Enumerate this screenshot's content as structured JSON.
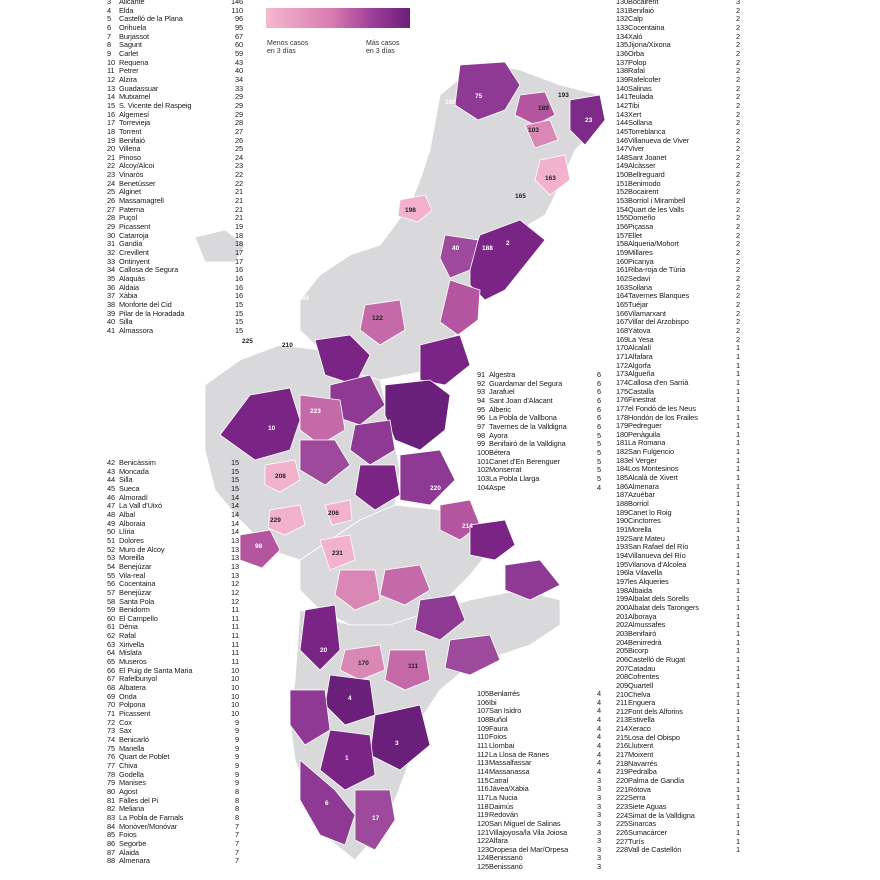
{
  "legend": {
    "min_label_line1": "Menos casos",
    "min_label_line2": "en 3 días",
    "max_label_line1": "Más casos",
    "max_label_line2": "en 3 días",
    "colors": {
      "low": "#f5b8cf",
      "mid": "#d87db0",
      "high": "#6a1f7a",
      "none": "#d9d9db",
      "border": "#ffffff"
    }
  },
  "list_a": [
    {
      "n": "3",
      "name": "Alicante",
      "v": "146"
    },
    {
      "n": "4",
      "name": "Elda",
      "v": "110"
    },
    {
      "n": "5",
      "name": "Castelló de la Plana",
      "v": "96"
    },
    {
      "n": "6",
      "name": "Orihuela",
      "v": "95"
    },
    {
      "n": "7",
      "name": "Burjassot",
      "v": "67"
    },
    {
      "n": "8",
      "name": "Sagunt",
      "v": "60"
    },
    {
      "n": "9",
      "name": "Carlet",
      "v": "59"
    },
    {
      "n": "10",
      "name": "Requena",
      "v": "43"
    },
    {
      "n": "11",
      "name": "Petrer",
      "v": "40"
    },
    {
      "n": "12",
      "name": "Alzira",
      "v": "34"
    },
    {
      "n": "13",
      "name": "Guadassuar",
      "v": "33"
    },
    {
      "n": "14",
      "name": "Mutxamel",
      "v": "29"
    },
    {
      "n": "15",
      "name": "S. Vicente del Raspeig",
      "v": "29"
    },
    {
      "n": "16",
      "name": "Algemesí",
      "v": "29"
    },
    {
      "n": "17",
      "name": "Torrevieja",
      "v": "28"
    },
    {
      "n": "18",
      "name": "Torrent",
      "v": "27"
    },
    {
      "n": "19",
      "name": "Benifaió",
      "v": "26"
    },
    {
      "n": "20",
      "name": "Villena",
      "v": "25"
    },
    {
      "n": "21",
      "name": "Pinoso",
      "v": "24"
    },
    {
      "n": "22",
      "name": "Alcoy/Alcoi",
      "v": "23"
    },
    {
      "n": "23",
      "name": "Vinaròs",
      "v": "22"
    },
    {
      "n": "24",
      "name": "Benetússer",
      "v": "22"
    },
    {
      "n": "25",
      "name": "Alginet",
      "v": "21"
    },
    {
      "n": "26",
      "name": "Massamagrell",
      "v": "21"
    },
    {
      "n": "27",
      "name": "Paterna",
      "v": "21"
    },
    {
      "n": "28",
      "name": "Puçol",
      "v": "21"
    },
    {
      "n": "29",
      "name": "Picassent",
      "v": "19"
    },
    {
      "n": "30",
      "name": "Catarroja",
      "v": "18"
    },
    {
      "n": "31",
      "name": "Gandia",
      "v": "18"
    },
    {
      "n": "32",
      "name": "Crevillent",
      "v": "17"
    },
    {
      "n": "33",
      "name": "Ontinyent",
      "v": "17"
    },
    {
      "n": "34",
      "name": "Callosa de Segura",
      "v": "16"
    },
    {
      "n": "35",
      "name": "Alaquàs",
      "v": "16"
    },
    {
      "n": "36",
      "name": "Aldaia",
      "v": "16"
    },
    {
      "n": "37",
      "name": "Xàbia",
      "v": "16"
    },
    {
      "n": "38",
      "name": "Monforte del Cid",
      "v": "15"
    },
    {
      "n": "39",
      "name": "Pilar de la Horadada",
      "v": "15"
    },
    {
      "n": "40",
      "name": "Silla",
      "v": "15"
    },
    {
      "n": "41",
      "name": "Almassora",
      "v": "15"
    }
  ],
  "list_b": [
    {
      "n": "42",
      "name": "Benicàssim",
      "v": "15"
    },
    {
      "n": "43",
      "name": "Moncada",
      "v": "15"
    },
    {
      "n": "44",
      "name": "Silla",
      "v": "15"
    },
    {
      "n": "45",
      "name": "Sueca",
      "v": "15"
    },
    {
      "n": "46",
      "name": "Almoradí",
      "v": "14"
    },
    {
      "n": "47",
      "name": "La Vall d'Uixó",
      "v": "14"
    },
    {
      "n": "48",
      "name": "Albal",
      "v": "14"
    },
    {
      "n": "49",
      "name": "Alboraia",
      "v": "14"
    },
    {
      "n": "50",
      "name": "Llíria",
      "v": "14"
    },
    {
      "n": "51",
      "name": "Dolores",
      "v": "13"
    },
    {
      "n": "52",
      "name": "Muro de Alcoy",
      "v": "13"
    },
    {
      "n": "53",
      "name": "Moreilla",
      "v": "13"
    },
    {
      "n": "54",
      "name": "Benejúzar",
      "v": "13"
    },
    {
      "n": "55",
      "name": "Vila-real",
      "v": "13"
    },
    {
      "n": "56",
      "name": "Cocentaina",
      "v": "12"
    },
    {
      "n": "57",
      "name": "Benejúzar",
      "v": "12"
    },
    {
      "n": "58",
      "name": "Santa Pola",
      "v": "12"
    },
    {
      "n": "59",
      "name": "Benidorm",
      "v": "11"
    },
    {
      "n": "60",
      "name": "El Campello",
      "v": "11"
    },
    {
      "n": "61",
      "name": "Dénia",
      "v": "11"
    },
    {
      "n": "62",
      "name": "Rafal",
      "v": "11"
    },
    {
      "n": "63",
      "name": "Xirivella",
      "v": "11"
    },
    {
      "n": "64",
      "name": "Mislata",
      "v": "11"
    },
    {
      "n": "65",
      "name": "Museros",
      "v": "11"
    },
    {
      "n": "66",
      "name": "El Puig de Santa Maria",
      "v": "10"
    },
    {
      "n": "67",
      "name": "Rafelbunyol",
      "v": "10"
    },
    {
      "n": "68",
      "name": "Albatera",
      "v": "10"
    },
    {
      "n": "69",
      "name": "Onda",
      "v": "10"
    },
    {
      "n": "70",
      "name": "Polpona",
      "v": "10"
    },
    {
      "n": "71",
      "name": "Picassent",
      "v": "10"
    },
    {
      "n": "72",
      "name": "Cox",
      "v": "9"
    },
    {
      "n": "73",
      "name": "Sax",
      "v": "9"
    },
    {
      "n": "74",
      "name": "Benicarló",
      "v": "9"
    },
    {
      "n": "75",
      "name": "Manella",
      "v": "9"
    },
    {
      "n": "76",
      "name": "Quart de Poblet",
      "v": "9"
    },
    {
      "n": "77",
      "name": "Chiva",
      "v": "9"
    },
    {
      "n": "78",
      "name": "Godella",
      "v": "9"
    },
    {
      "n": "79",
      "name": "Manises",
      "v": "9"
    },
    {
      "n": "80",
      "name": "Agost",
      "v": "8"
    },
    {
      "n": "81",
      "name": "Fàlles del Pi",
      "v": "8"
    },
    {
      "n": "82",
      "name": "Meliana",
      "v": "8"
    },
    {
      "n": "83",
      "name": "La Pobla de Farnals",
      "v": "8"
    },
    {
      "n": "84",
      "name": "Monòver/Monóvar",
      "v": "7"
    },
    {
      "n": "85",
      "name": "Foios",
      "v": "7"
    },
    {
      "n": "86",
      "name": "Segorbe",
      "v": "7"
    },
    {
      "n": "87",
      "name": "Alaida",
      "v": "7"
    },
    {
      "n": "88",
      "name": "Almenara",
      "v": "7"
    }
  ],
  "list_c": [
    {
      "n": "91",
      "name": "Algestra",
      "v": "6"
    },
    {
      "n": "92",
      "name": "Guardamar del Segura",
      "v": "6"
    },
    {
      "n": "93",
      "name": "Jarafuel",
      "v": "6"
    },
    {
      "n": "94",
      "name": "Sant Joan d'Alacant",
      "v": "6"
    },
    {
      "n": "95",
      "name": "Alberic",
      "v": "6"
    },
    {
      "n": "96",
      "name": "La Pobla de Vallbona",
      "v": "6"
    },
    {
      "n": "97",
      "name": "Tavernes de la Valldigna",
      "v": "6"
    },
    {
      "n": "98",
      "name": "Ayora",
      "v": "5"
    },
    {
      "n": "99",
      "name": "Benifairó de la Valldigna",
      "v": "5"
    },
    {
      "n": "100",
      "name": "Bétera",
      "v": "5"
    },
    {
      "n": "101",
      "name": "Canet d'En Berenguer",
      "v": "5"
    },
    {
      "n": "102",
      "name": "Monserrat",
      "v": "5"
    },
    {
      "n": "103",
      "name": "La Pobla Llarga",
      "v": "5"
    },
    {
      "n": "104",
      "name": "Aspe",
      "v": "4"
    }
  ],
  "list_d": [
    {
      "n": "105",
      "name": "Benlarrés",
      "v": "4"
    },
    {
      "n": "106",
      "name": "Ibi",
      "v": "4"
    },
    {
      "n": "107",
      "name": "San Isidro",
      "v": "4"
    },
    {
      "n": "108",
      "name": "Buñol",
      "v": "4"
    },
    {
      "n": "109",
      "name": "Faura",
      "v": "4"
    },
    {
      "n": "110",
      "name": "Foios",
      "v": "4"
    },
    {
      "n": "111",
      "name": "Llombai",
      "v": "4"
    },
    {
      "n": "112",
      "name": "La Llosa de Ranes",
      "v": "4"
    },
    {
      "n": "113",
      "name": "Massalfassar",
      "v": "4"
    },
    {
      "n": "114",
      "name": "Massanassa",
      "v": "4"
    },
    {
      "n": "115",
      "name": "Catral",
      "v": "3"
    },
    {
      "n": "116",
      "name": "Jávea/Xàbia",
      "v": "3"
    },
    {
      "n": "117",
      "name": "La Nucia",
      "v": "3"
    },
    {
      "n": "118",
      "name": "Daimús",
      "v": "3"
    },
    {
      "n": "119",
      "name": "Redován",
      "v": "3"
    },
    {
      "n": "120",
      "name": "San Miguel de Salinas",
      "v": "3"
    },
    {
      "n": "121",
      "name": "Villajoyosa/la Vila Joiosa",
      "v": "3"
    },
    {
      "n": "122",
      "name": "Alfara",
      "v": "3"
    },
    {
      "n": "123",
      "name": "Oropesa del Mar/Orpesa",
      "v": "3"
    },
    {
      "n": "124",
      "name": "Benissanó",
      "v": "3"
    },
    {
      "n": "125",
      "name": "Benissanó",
      "v": "3"
    }
  ],
  "list_e": [
    {
      "n": "130",
      "name": "Bocairent",
      "v": "3"
    },
    {
      "n": "131",
      "name": "Benifaió",
      "v": "2"
    },
    {
      "n": "132",
      "name": "Calp",
      "v": "2"
    },
    {
      "n": "133",
      "name": "Cocentaina",
      "v": "2"
    },
    {
      "n": "134",
      "name": "Xaló",
      "v": "2"
    },
    {
      "n": "135",
      "name": "Jijona/Xixona",
      "v": "2"
    },
    {
      "n": "136",
      "name": "Orba",
      "v": "2"
    },
    {
      "n": "137",
      "name": "Polop",
      "v": "2"
    },
    {
      "n": "138",
      "name": "Rafal",
      "v": "2"
    },
    {
      "n": "139",
      "name": "Rafelcofer",
      "v": "2"
    },
    {
      "n": "140",
      "name": "Salinas",
      "v": "2"
    },
    {
      "n": "141",
      "name": "Teulada",
      "v": "2"
    },
    {
      "n": "142",
      "name": "Tibi",
      "v": "2"
    },
    {
      "n": "143",
      "name": "Xert",
      "v": "2"
    },
    {
      "n": "144",
      "name": "Sollana",
      "v": "2"
    },
    {
      "n": "145",
      "name": "Torreblanca",
      "v": "2"
    },
    {
      "n": "146",
      "name": "Villanueva de Viver",
      "v": "2"
    },
    {
      "n": "147",
      "name": "Viver",
      "v": "2"
    },
    {
      "n": "148",
      "name": "Sant Joanet",
      "v": "2"
    },
    {
      "n": "149",
      "name": "Alcàsser",
      "v": "2"
    },
    {
      "n": "150",
      "name": "Bellreguard",
      "v": "2"
    },
    {
      "n": "151",
      "name": "Benimodo",
      "v": "2"
    },
    {
      "n": "152",
      "name": "Bocairent",
      "v": "2"
    },
    {
      "n": "153",
      "name": "Borriol i Mirambell",
      "v": "2"
    },
    {
      "n": "154",
      "name": "Quart de les Valls",
      "v": "2"
    },
    {
      "n": "155",
      "name": "Domeño",
      "v": "2"
    },
    {
      "n": "156",
      "name": "Piçassa",
      "v": "2"
    },
    {
      "n": "157",
      "name": "Ellet",
      "v": "2"
    },
    {
      "n": "158",
      "name": "Alqueria/Mohort",
      "v": "2"
    },
    {
      "n": "159",
      "name": "Millares",
      "v": "2"
    },
    {
      "n": "160",
      "name": "Picanya",
      "v": "2"
    },
    {
      "n": "161",
      "name": "Riba-roja de Túria",
      "v": "2"
    },
    {
      "n": "162",
      "name": "Sedaví",
      "v": "2"
    },
    {
      "n": "163",
      "name": "Sollana",
      "v": "2"
    },
    {
      "n": "164",
      "name": "Tavernes Blanques",
      "v": "2"
    },
    {
      "n": "165",
      "name": "Tuéjar",
      "v": "2"
    },
    {
      "n": "166",
      "name": "Vilamarxant",
      "v": "2"
    },
    {
      "n": "167",
      "name": "Villar del Arzobispo",
      "v": "2"
    },
    {
      "n": "168",
      "name": "Yátova",
      "v": "2"
    },
    {
      "n": "169",
      "name": "La Yesa",
      "v": "2"
    },
    {
      "n": "170",
      "name": "Alcalalí",
      "v": "1"
    },
    {
      "n": "171",
      "name": "Alfafara",
      "v": "1"
    },
    {
      "n": "172",
      "name": "Algorfa",
      "v": "1"
    },
    {
      "n": "173",
      "name": "Algueña",
      "v": "1"
    },
    {
      "n": "174",
      "name": "Callosa d'en Sarrià",
      "v": "1"
    },
    {
      "n": "175",
      "name": "Castalla",
      "v": "1"
    },
    {
      "n": "176",
      "name": "Finestrat",
      "v": "1"
    },
    {
      "n": "177",
      "name": "el Fondó de les Neus",
      "v": "1"
    },
    {
      "n": "178",
      "name": "Hondón de los Frailes",
      "v": "1"
    },
    {
      "n": "179",
      "name": "Pedreguer",
      "v": "1"
    },
    {
      "n": "180",
      "name": "Penàguila",
      "v": "1"
    },
    {
      "n": "181",
      "name": "La Romana",
      "v": "1"
    },
    {
      "n": "182",
      "name": "San Fulgencio",
      "v": "1"
    },
    {
      "n": "183",
      "name": "el Verger",
      "v": "1"
    },
    {
      "n": "184",
      "name": "Los Montesinos",
      "v": "1"
    },
    {
      "n": "185",
      "name": "Alcalà de Xivert",
      "v": "1"
    },
    {
      "n": "186",
      "name": "Almenara",
      "v": "1"
    },
    {
      "n": "187",
      "name": "Azuébar",
      "v": "1"
    },
    {
      "n": "188",
      "name": "Borriol",
      "v": "1"
    },
    {
      "n": "189",
      "name": "Canet lo Roig",
      "v": "1"
    },
    {
      "n": "190",
      "name": "Cinctorres",
      "v": "1"
    },
    {
      "n": "191",
      "name": "Morella",
      "v": "1"
    },
    {
      "n": "192",
      "name": "Sant Mateu",
      "v": "1"
    },
    {
      "n": "193",
      "name": "San Rafael del Río",
      "v": "1"
    },
    {
      "n": "194",
      "name": "Villanueva del Río",
      "v": "1"
    },
    {
      "n": "195",
      "name": "Vilanova d'Alcolea",
      "v": "1"
    },
    {
      "n": "196",
      "name": "la Vilavella",
      "v": "1"
    },
    {
      "n": "197",
      "name": "les Alqueries",
      "v": "1"
    },
    {
      "n": "198",
      "name": "Albaida",
      "v": "1"
    },
    {
      "n": "199",
      "name": "Albalat dels Sorells",
      "v": "1"
    },
    {
      "n": "200",
      "name": "Albalat dels Tarongers",
      "v": "1"
    },
    {
      "n": "201",
      "name": "Alboraya",
      "v": "1"
    },
    {
      "n": "202",
      "name": "Almussafes",
      "v": "1"
    },
    {
      "n": "203",
      "name": "Benifairó",
      "v": "1"
    },
    {
      "n": "204",
      "name": "Benirredrà",
      "v": "1"
    },
    {
      "n": "205",
      "name": "Bicorp",
      "v": "1"
    },
    {
      "n": "206",
      "name": "Castelló de Rugat",
      "v": "1"
    },
    {
      "n": "207",
      "name": "Catadau",
      "v": "1"
    },
    {
      "n": "208",
      "name": "Cofrentes",
      "v": "1"
    },
    {
      "n": "209",
      "name": "Quartell",
      "v": "1"
    },
    {
      "n": "210",
      "name": "Chelva",
      "v": "1"
    },
    {
      "n": "211",
      "name": "Enguera",
      "v": "1"
    },
    {
      "n": "212",
      "name": "Font dels Alforins",
      "v": "1"
    },
    {
      "n": "213",
      "name": "Estivella",
      "v": "1"
    },
    {
      "n": "214",
      "name": "Xeraco",
      "v": "1"
    },
    {
      "n": "215",
      "name": "Losa del Obispo",
      "v": "1"
    },
    {
      "n": "216",
      "name": "Llutxent",
      "v": "1"
    },
    {
      "n": "217",
      "name": "Moixent",
      "v": "1"
    },
    {
      "n": "218",
      "name": "Navarrés",
      "v": "1"
    },
    {
      "n": "219",
      "name": "Pedralba",
      "v": "1"
    },
    {
      "n": "220",
      "name": "Palma de Gandía",
      "v": "1"
    },
    {
      "n": "221",
      "name": "Rótova",
      "v": "1"
    },
    {
      "n": "222",
      "name": "Serra",
      "v": "1"
    },
    {
      "n": "223",
      "name": "Siete Aguas",
      "v": "1"
    },
    {
      "n": "224",
      "name": "Simat de la Valldigna",
      "v": "1"
    },
    {
      "n": "225",
      "name": "Sinarcas",
      "v": "1"
    },
    {
      "n": "226",
      "name": "Sumacàrcer",
      "v": "1"
    },
    {
      "n": "227",
      "name": "Turís",
      "v": "1"
    },
    {
      "n": "228",
      "name": "Vall de Castellón",
      "v": "1"
    }
  ],
  "map_labels": [
    "75",
    "189",
    "193",
    "23",
    "163",
    "103",
    "190",
    "165",
    "194",
    "198",
    "40",
    "188",
    "2",
    "122",
    "169",
    "225",
    "210",
    "10",
    "223",
    "208",
    "229",
    "98",
    "206",
    "231",
    "220",
    "214",
    "20",
    "170",
    "111",
    "1",
    "5",
    "4",
    "3",
    "8",
    "7",
    "6",
    "1"
  ]
}
